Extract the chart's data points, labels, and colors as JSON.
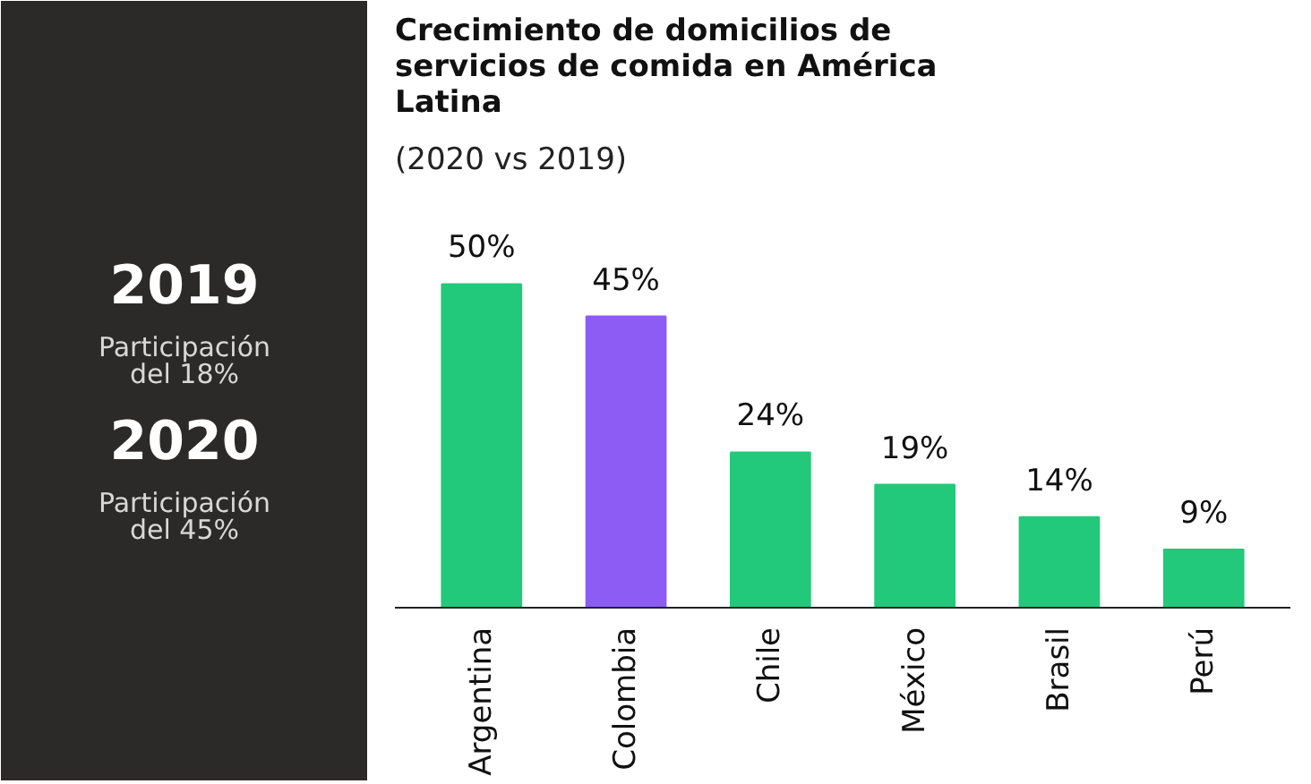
{
  "chart_data": [
    {
      "type": "other",
      "annotations": [
        "2019",
        "Participación del 18%",
        "2020",
        "Participación del 45%"
      ]
    },
    {
      "type": "bar",
      "title": "Crecimiento de domicilios de servicios de comida en América Latina",
      "subtitle": "(2020 vs 2019)",
      "categories": [
        "Argentina",
        "Colombia",
        "Chile",
        "México",
        "Brasil",
        "Perú"
      ],
      "values": [
        50,
        45,
        24,
        19,
        14,
        9
      ],
      "colors": [
        "#22c97a",
        "#8c5cf5",
        "#22c97a",
        "#22c97a",
        "#22c97a",
        "#22c97a"
      ],
      "value_labels": [
        "50%",
        "45%",
        "24%",
        "19%",
        "14%",
        "9%"
      ],
      "grid": false
    }
  ]
}
